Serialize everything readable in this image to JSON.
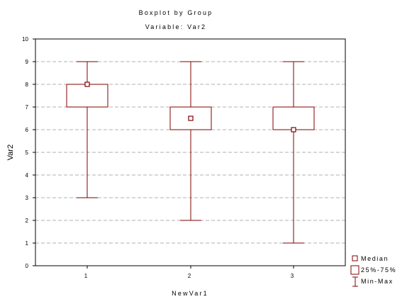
{
  "chart_data": {
    "type": "boxplot",
    "title": "Boxplot by Group",
    "subtitle": "Variable: Var2",
    "xlabel": "NewVar1",
    "ylabel": "Var2",
    "ylim": [
      0,
      10
    ],
    "y_ticks": [
      "0",
      "1",
      "2",
      "3",
      "4",
      "5",
      "6",
      "7",
      "8",
      "9",
      "10"
    ],
    "grid": true,
    "legend_position": "bottom-right",
    "legend": [
      "Median",
      "25%-75%",
      "Min-Max"
    ],
    "groups": [
      {
        "label": "1",
        "min": 3,
        "q1": 7,
        "median": 8,
        "q3": 8,
        "max": 9
      },
      {
        "label": "2",
        "min": 2,
        "q1": 6,
        "median": 6.5,
        "q3": 7,
        "max": 9
      },
      {
        "label": "3",
        "min": 1,
        "q1": 6,
        "median": 6,
        "q3": 7,
        "max": 9
      }
    ],
    "colors": {
      "box": "#800000",
      "grid": "#b0b0b0"
    }
  }
}
